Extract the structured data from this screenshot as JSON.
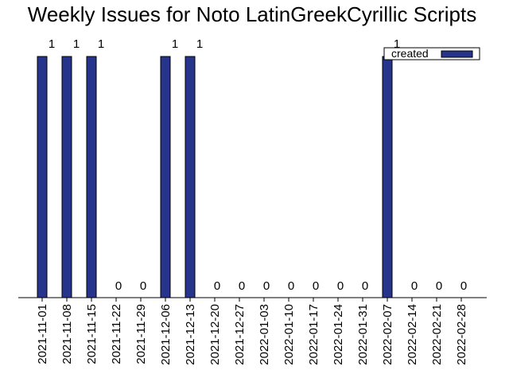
{
  "chart_data": {
    "type": "bar",
    "title": "Weekly Issues for Noto LatinGreekCyrillic Scripts",
    "xlabel": "",
    "ylabel": "",
    "ylim": [
      0,
      1
    ],
    "grid": false,
    "legend_position": "top-right",
    "categories": [
      "2021-11-01",
      "2021-11-08",
      "2021-11-15",
      "2021-11-22",
      "2021-11-29",
      "2021-12-06",
      "2021-12-13",
      "2021-12-20",
      "2021-12-27",
      "2022-01-03",
      "2022-01-10",
      "2022-01-17",
      "2022-01-24",
      "2022-01-31",
      "2022-02-07",
      "2022-02-14",
      "2022-02-21",
      "2022-02-28"
    ],
    "series": [
      {
        "name": "created",
        "color": "#27348b",
        "values": [
          1,
          1,
          1,
          0,
          0,
          1,
          1,
          0,
          0,
          0,
          0,
          0,
          0,
          0,
          1,
          0,
          0,
          0
        ]
      }
    ]
  }
}
